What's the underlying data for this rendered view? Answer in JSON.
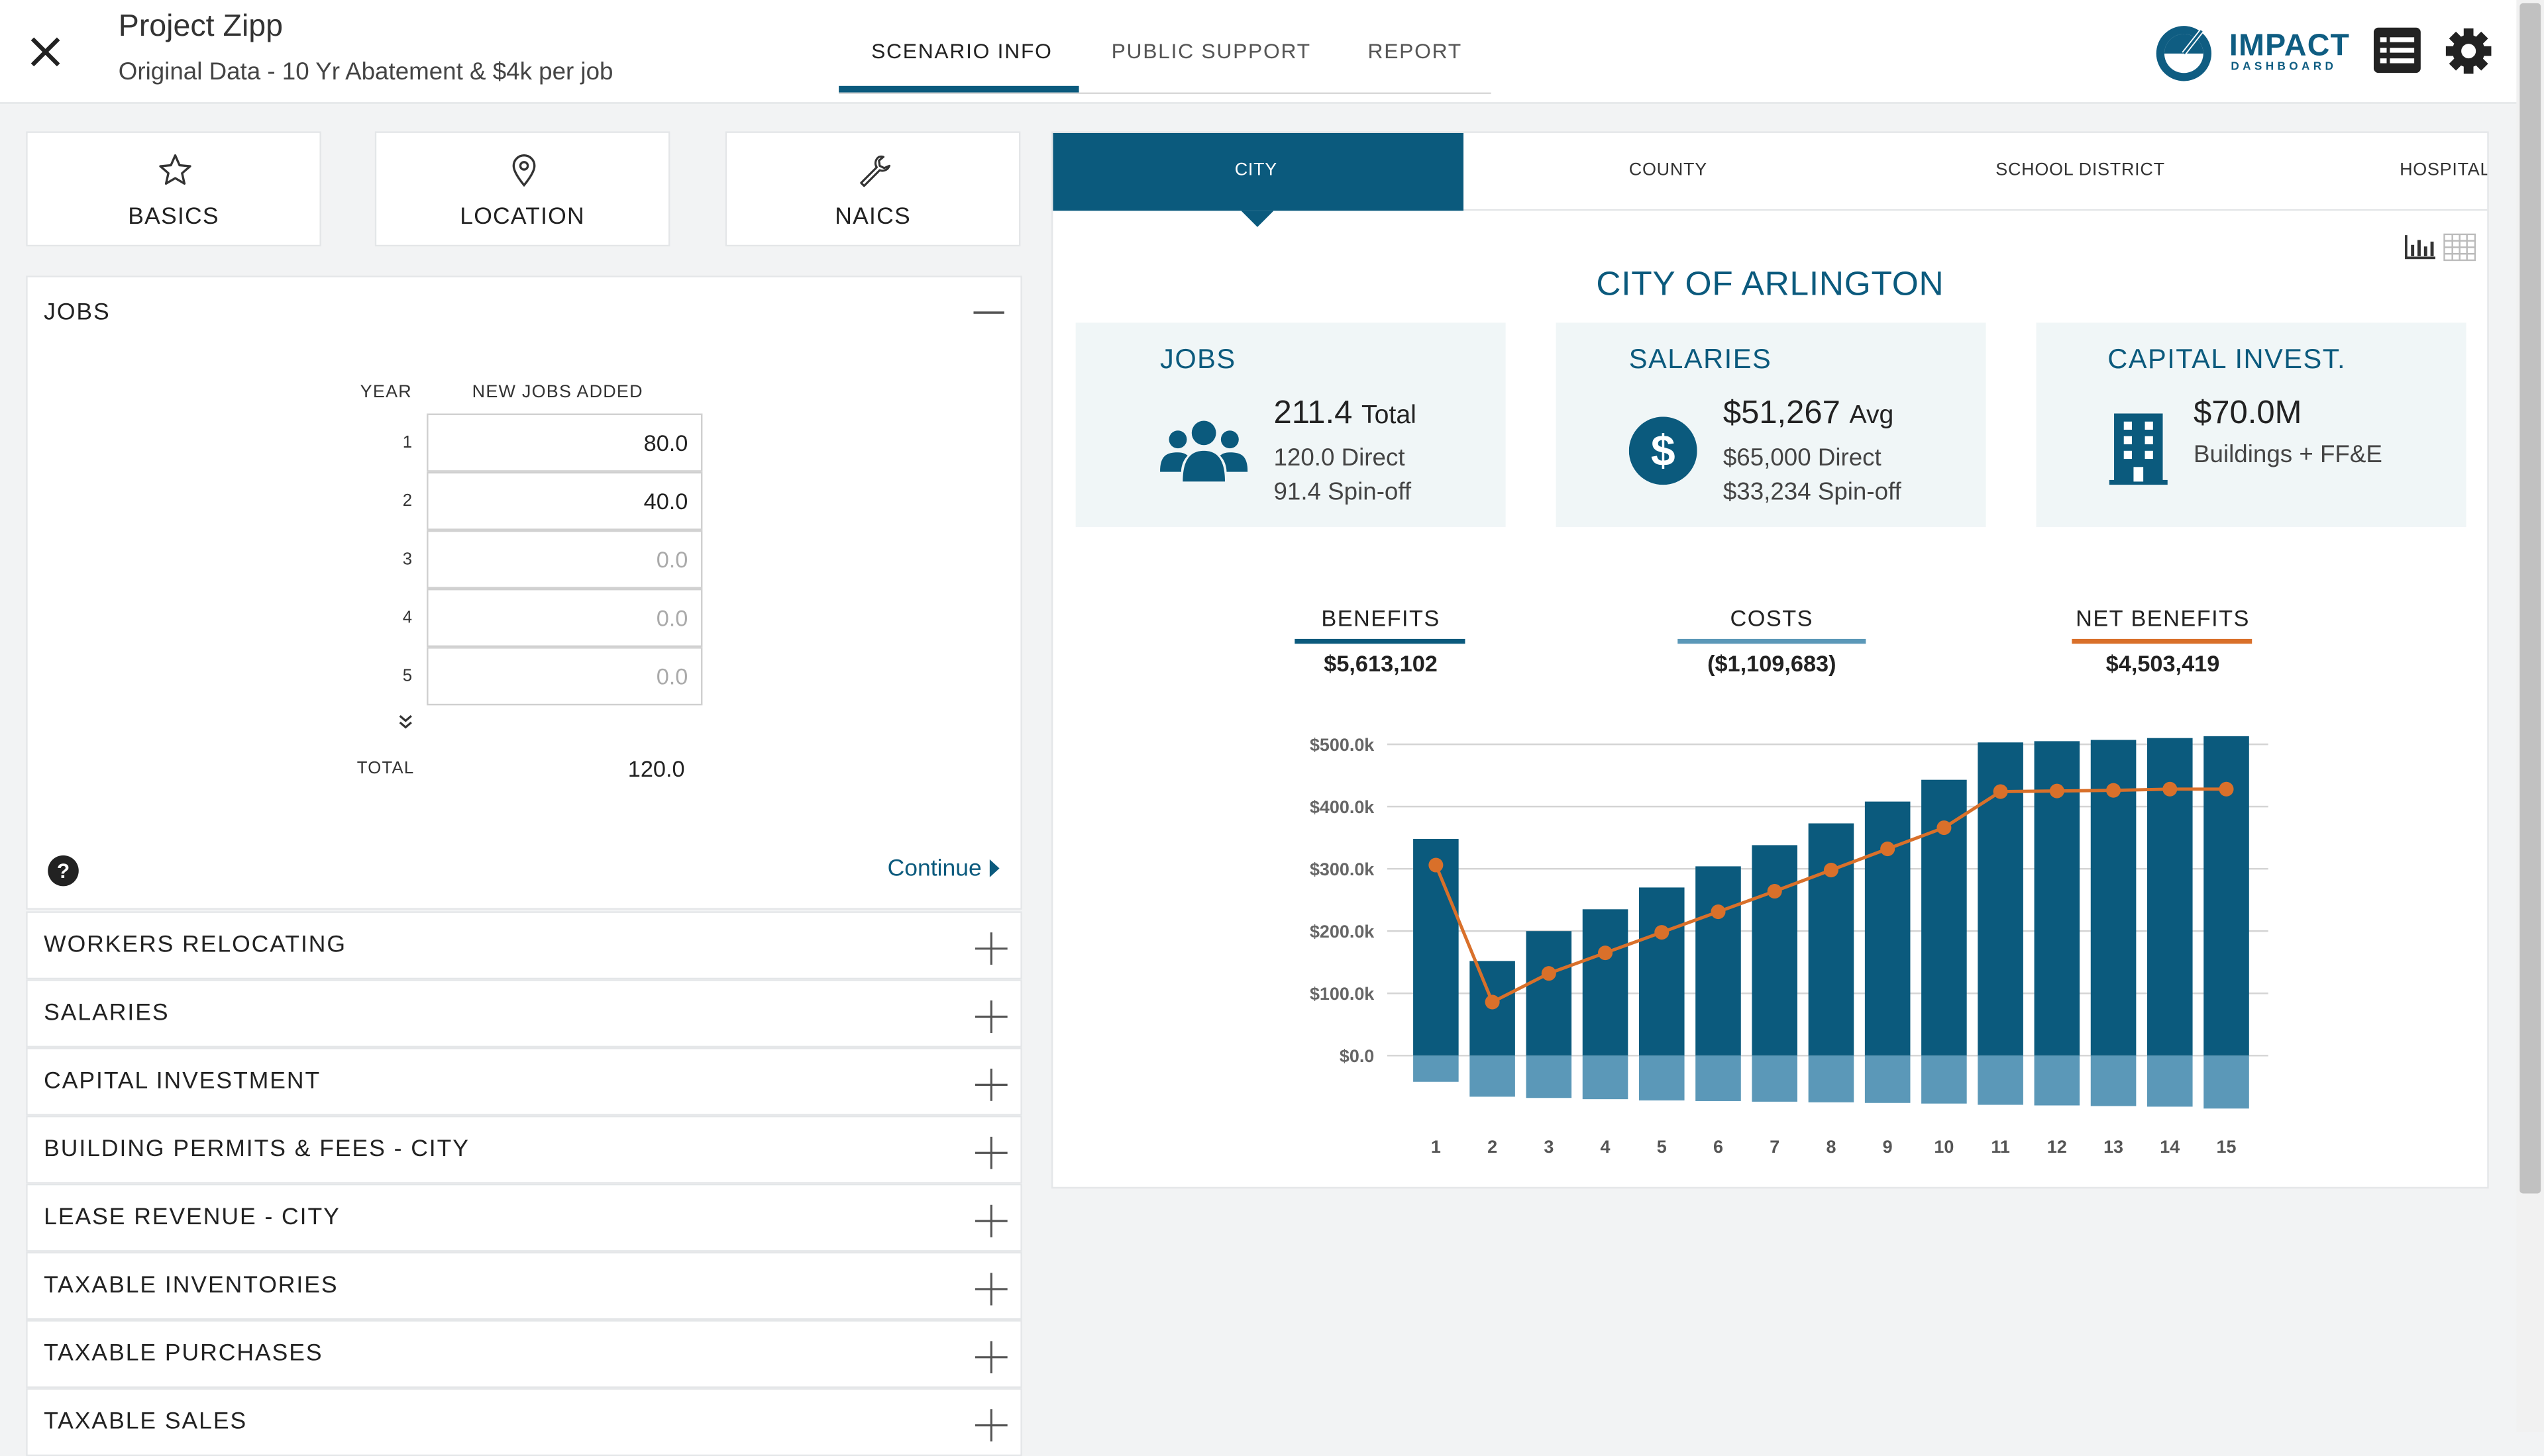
{
  "header": {
    "project_title": "Project Zipp",
    "project_subtitle": "Original Data - 10 Yr Abatement & $4k per job",
    "tabs": [
      "SCENARIO INFO",
      "PUBLIC SUPPORT",
      "REPORT"
    ],
    "active_tab": "SCENARIO INFO",
    "logo_main": "IMPACT",
    "logo_sub": "DASHBOARD"
  },
  "nav_cards": [
    {
      "label": "BASICS",
      "icon": "star-icon"
    },
    {
      "label": "LOCATION",
      "icon": "map-pin-icon"
    },
    {
      "label": "NAICS",
      "icon": "wrench-icon"
    }
  ],
  "jobs": {
    "title": "JOBS",
    "col_year": "YEAR",
    "col_new_jobs": "NEW JOBS ADDED",
    "rows": [
      {
        "year": "1",
        "value": "80.0",
        "placeholder": ""
      },
      {
        "year": "2",
        "value": "40.0",
        "placeholder": ""
      },
      {
        "year": "3",
        "value": "",
        "placeholder": "0.0"
      },
      {
        "year": "4",
        "value": "",
        "placeholder": "0.0"
      },
      {
        "year": "5",
        "value": "",
        "placeholder": "0.0"
      }
    ],
    "total_label": "TOTAL",
    "total_value": "120.0",
    "continue_label": "Continue"
  },
  "accordion": [
    "WORKERS RELOCATING",
    "SALARIES",
    "CAPITAL INVESTMENT",
    "BUILDING PERMITS & FEES - CITY",
    "LEASE REVENUE - CITY",
    "TAXABLE INVENTORIES",
    "TAXABLE PURCHASES",
    "TAXABLE SALES"
  ],
  "gov_tabs": [
    "CITY",
    "COUNTY",
    "SCHOOL DISTRICT",
    "HOSPITAL"
  ],
  "active_gov_tab": "CITY",
  "city_title": "CITY OF ARLINGTON",
  "stats": {
    "jobs": {
      "title": "JOBS",
      "big": "211.4",
      "big_suffix": "Total",
      "line1": "120.0 Direct",
      "line2": "91.4 Spin-off"
    },
    "salaries": {
      "title": "SALARIES",
      "big": "$51,267",
      "big_suffix": "Avg",
      "line1": "$65,000 Direct",
      "line2": "$33,234 Spin-off"
    },
    "capital": {
      "title": "CAPITAL INVEST.",
      "big": "$70.0M",
      "line1": "Buildings + FF&E"
    }
  },
  "summary": [
    {
      "label": "BENEFITS",
      "value": "$5,613,102",
      "color": "#0b5a7d"
    },
    {
      "label": "COSTS",
      "value": "($1,109,683)",
      "color": "#5b98b8"
    },
    {
      "label": "NET BENEFITS",
      "value": "$4,503,419",
      "color": "#d9702a"
    }
  ],
  "colors": {
    "accent": "#0b5a7d",
    "cost": "#5b98b8",
    "net": "#d9702a"
  },
  "chart_data": {
    "type": "bar",
    "categories": [
      "1",
      "2",
      "3",
      "4",
      "5",
      "6",
      "7",
      "8",
      "9",
      "10",
      "11",
      "12",
      "13",
      "14",
      "15"
    ],
    "series": [
      {
        "values": [
          348000,
          152000,
          200000,
          235000,
          270000,
          304000,
          338000,
          373000,
          408000,
          443000,
          503000,
          505000,
          507000,
          510000,
          513000
        ],
        "color": "#0b5a7d"
      },
      {
        "values": [
          -42000,
          -66000,
          -68000,
          -70000,
          -72000,
          -73000,
          -74000,
          -75000,
          -76000,
          -77000,
          -79000,
          -80000,
          -81000,
          -82000,
          -85000
        ],
        "color": "#5b98b8"
      },
      {
        "type": "line",
        "values": [
          306000,
          86000,
          132000,
          165000,
          198000,
          231000,
          264000,
          298000,
          332000,
          366000,
          424000,
          425000,
          426000,
          428000,
          428000
        ],
        "color": "#d9702a"
      }
    ],
    "ytick_labels": [
      "$0.0",
      "$100.0k",
      "$200.0k",
      "$300.0k",
      "$400.0k",
      "$500.0k"
    ],
    "ylim": [
      -100000,
      500000
    ],
    "grid": true
  }
}
